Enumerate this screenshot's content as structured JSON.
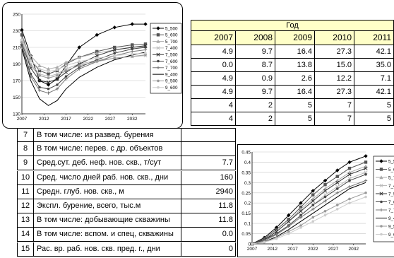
{
  "table": {
    "header_year": "Год",
    "years": [
      "2007",
      "2008",
      "2009",
      "2010",
      "2011"
    ],
    "top_rows": [
      [
        "4.9",
        "9.7",
        "16.4",
        "27.3",
        "42.1"
      ],
      [
        "0.0",
        "8.7",
        "13.8",
        "15.0",
        "35.0"
      ],
      [
        "4.9",
        "0.9",
        "2.6",
        "12.2",
        "7.1"
      ],
      [
        "4.9",
        "9.7",
        "16.4",
        "27.3",
        "42.1"
      ],
      [
        "4",
        "2",
        "5",
        "7",
        "5"
      ],
      [
        "4",
        "2",
        "5",
        "7",
        "5"
      ]
    ],
    "rows": [
      {
        "n": "7",
        "label": "В том числе: из развед. бурения",
        "v": ""
      },
      {
        "n": "8",
        "label": "В том числе: перев. с др. объектов",
        "v": ""
      },
      {
        "n": "9",
        "label": "Сред.сут. деб. неф. нов. скв., т/сут",
        "v": "7.7"
      },
      {
        "n": "10",
        "label": "Сред. число дней раб. нов. скв., дни",
        "v": "160"
      },
      {
        "n": "11",
        "label": "Средн. глуб. нов. скв., м",
        "v": "2940"
      },
      {
        "n": "12",
        "label": "Экспл. бурение, всего, тыс.м",
        "v": "11.8"
      },
      {
        "n": "13",
        "label": "В том числе: добывающие скважины",
        "v": "11.8"
      },
      {
        "n": "14",
        "label": "В том числе: вспом. и спец, скважины",
        "v": "0.0"
      },
      {
        "n": "15",
        "label": "Рас. вр. раб. нов. скв. пред. г., дни",
        "v": "0"
      }
    ]
  },
  "chart_data": [
    {
      "type": "line",
      "title": "",
      "xlabel": "",
      "ylabel": "",
      "x": [
        2007,
        2009,
        2011,
        2013,
        2015,
        2017,
        2020,
        2024,
        2028,
        2032,
        2035
      ],
      "xticks": [
        "2007",
        "2012",
        "2017",
        "2022",
        "2027",
        "2032"
      ],
      "yticks": [
        "130",
        "150",
        "170",
        "190",
        "210",
        "230",
        "250"
      ],
      "ylim": [
        130,
        250
      ],
      "grid": true,
      "legend": "right",
      "series": [
        {
          "name": "5_500",
          "color": "#000000",
          "marker": "diamond",
          "values": [
            231,
            200,
            170,
            165,
            172,
            188,
            210,
            225,
            234,
            238,
            238
          ]
        },
        {
          "name": "5_600",
          "color": "#555555",
          "marker": "square",
          "values": [
            225,
            195,
            182,
            178,
            182,
            190,
            198,
            205,
            210,
            213,
            214
          ]
        },
        {
          "name": "5_700",
          "color": "#aaaaaa",
          "marker": "triangle",
          "values": [
            220,
            200,
            188,
            184,
            186,
            192,
            198,
            203,
            207,
            210,
            211
          ]
        },
        {
          "name": "7_400",
          "color": "#bbbbbb",
          "marker": "x",
          "values": [
            218,
            190,
            178,
            175,
            178,
            184,
            190,
            194,
            197,
            199,
            200
          ]
        },
        {
          "name": "7_500",
          "color": "#333333",
          "marker": "x",
          "values": [
            215,
            185,
            170,
            168,
            172,
            180,
            190,
            200,
            207,
            210,
            212
          ]
        },
        {
          "name": "7_600",
          "color": "#444444",
          "marker": "circle",
          "values": [
            212,
            178,
            162,
            160,
            165,
            175,
            186,
            195,
            203,
            208,
            210
          ]
        },
        {
          "name": "7_700",
          "color": "#777777",
          "marker": "plus",
          "values": [
            210,
            175,
            158,
            155,
            160,
            172,
            184,
            193,
            200,
            205,
            207
          ]
        },
        {
          "name": "9_400",
          "color": "#000000",
          "marker": "none",
          "values": [
            208,
            170,
            148,
            140,
            146,
            160,
            174,
            186,
            195,
            201,
            204
          ]
        },
        {
          "name": "9_500",
          "color": "#999999",
          "marker": "circle",
          "values": [
            216,
            188,
            176,
            173,
            176,
            182,
            188,
            193,
            197,
            199,
            201
          ]
        },
        {
          "name": "9_600",
          "color": "#cccccc",
          "marker": "circle",
          "values": [
            219,
            194,
            184,
            181,
            183,
            188,
            193,
            197,
            200,
            202,
            203
          ]
        }
      ]
    },
    {
      "type": "line",
      "title": "",
      "xlabel": "",
      "ylabel": "",
      "x": [
        2007,
        2010,
        2013,
        2016,
        2019,
        2022,
        2025,
        2028,
        2031,
        2035
      ],
      "xticks": [
        "2007",
        "2012",
        "2017",
        "2022",
        "2027",
        "2032"
      ],
      "yticks": [
        "0",
        "0.05",
        "0.1",
        "0.15",
        "0.2",
        "0.25",
        "0.3",
        "0.35",
        "0.4",
        "0.45"
      ],
      "ylim": [
        0,
        0.45
      ],
      "grid": true,
      "legend": "right",
      "series": [
        {
          "name": "5_500",
          "color": "#000000",
          "marker": "diamond",
          "values": [
            0.0,
            0.03,
            0.08,
            0.14,
            0.2,
            0.26,
            0.31,
            0.36,
            0.4,
            0.43
          ]
        },
        {
          "name": "5_600",
          "color": "#555555",
          "marker": "square",
          "values": [
            0.0,
            0.025,
            0.07,
            0.12,
            0.18,
            0.24,
            0.29,
            0.33,
            0.37,
            0.4
          ]
        },
        {
          "name": "5_700",
          "color": "#aaaaaa",
          "marker": "triangle",
          "values": [
            0.0,
            0.02,
            0.06,
            0.11,
            0.17,
            0.22,
            0.27,
            0.31,
            0.35,
            0.38
          ]
        },
        {
          "name": "7_400",
          "color": "#bbbbbb",
          "marker": "x",
          "values": [
            0.0,
            0.015,
            0.05,
            0.09,
            0.14,
            0.19,
            0.24,
            0.28,
            0.32,
            0.35
          ]
        },
        {
          "name": "7_500",
          "color": "#333333",
          "marker": "x",
          "values": [
            0.0,
            0.02,
            0.06,
            0.11,
            0.16,
            0.21,
            0.26,
            0.3,
            0.34,
            0.37
          ]
        },
        {
          "name": "7_600",
          "color": "#444444",
          "marker": "circle",
          "values": [
            0.0,
            0.02,
            0.05,
            0.09,
            0.14,
            0.19,
            0.23,
            0.27,
            0.31,
            0.34
          ]
        },
        {
          "name": "7_700",
          "color": "#777777",
          "marker": "plus",
          "values": [
            0.0,
            0.015,
            0.045,
            0.085,
            0.13,
            0.17,
            0.21,
            0.25,
            0.28,
            0.31
          ]
        },
        {
          "name": "9_400",
          "color": "#000000",
          "marker": "none",
          "values": [
            0.0,
            0.01,
            0.035,
            0.07,
            0.11,
            0.15,
            0.19,
            0.23,
            0.27,
            0.3
          ]
        },
        {
          "name": "9_500",
          "color": "#999999",
          "marker": "circle",
          "values": [
            0.0,
            0.01,
            0.03,
            0.06,
            0.09,
            0.13,
            0.16,
            0.19,
            0.22,
            0.25
          ]
        },
        {
          "name": "9_600",
          "color": "#cccccc",
          "marker": "circle",
          "values": [
            0.0,
            0.008,
            0.025,
            0.05,
            0.08,
            0.11,
            0.14,
            0.17,
            0.2,
            0.23
          ]
        }
      ]
    }
  ]
}
